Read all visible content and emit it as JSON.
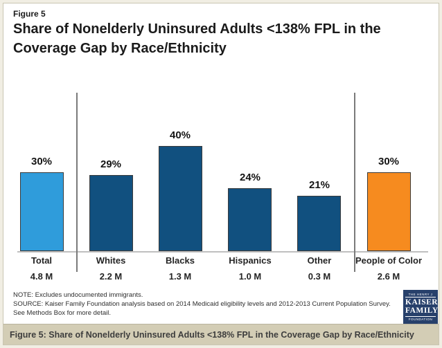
{
  "header": {
    "figure_label": "Figure 5",
    "title": "Share of Nonelderly Uninsured Adults <138% FPL in the Coverage Gap by Race/Ethnicity"
  },
  "chart_data": {
    "type": "bar",
    "title": "Share of Nonelderly Uninsured Adults <138% FPL in the Coverage Gap by Race/Ethnicity",
    "categories": [
      "Total",
      "Whites",
      "Blacks",
      "Hispanics",
      "Other",
      "People of Color"
    ],
    "values": [
      30,
      29,
      40,
      24,
      21,
      30
    ],
    "value_labels": [
      "30%",
      "29%",
      "40%",
      "24%",
      "21%",
      "30%"
    ],
    "sublabels": [
      "4.8 M",
      "2.2 M",
      "1.3 M",
      "1.0 M",
      "0.3 M",
      "2.6 M"
    ],
    "bar_colors": [
      "#2F9CDB",
      "#11507F",
      "#11507F",
      "#11507F",
      "#11507F",
      "#F68B1F"
    ],
    "separators_after_index": [
      0,
      4
    ],
    "xlabel": "",
    "ylabel": "",
    "ylim": [
      0,
      45
    ],
    "grid": false,
    "legend": false,
    "data_labels": "percent above bars; millions below category names"
  },
  "footer": {
    "note": "NOTE: Excludes undocumented immigrants.",
    "source": "SOURCE: Kaiser Family Foundation analysis based on 2014 Medicaid eligibility levels and 2012-2013 Current Population Survey. See Methods Box for more detail.",
    "logo": {
      "line1": "THE HENRY J",
      "line2": "KAISER",
      "line3": "FAMILY",
      "line4": "FOUNDATION"
    }
  },
  "caption_bar": {
    "text": "Figure 5: Share of Nonelderly Uninsured Adults <138% FPL in the Coverage Gap by Race/Ethnicity"
  },
  "colors": {
    "total_bar": "#2F9CDB",
    "race_bars": "#11507F",
    "people_of_color_bar": "#F68B1F",
    "bar_border": "#3a3a3a",
    "divider": "#7A7A7A",
    "baseline": "#BFBFBF",
    "frame": "#F1EEE3",
    "caption_background": "#D3CDB5",
    "logo_background": "#27406B"
  }
}
